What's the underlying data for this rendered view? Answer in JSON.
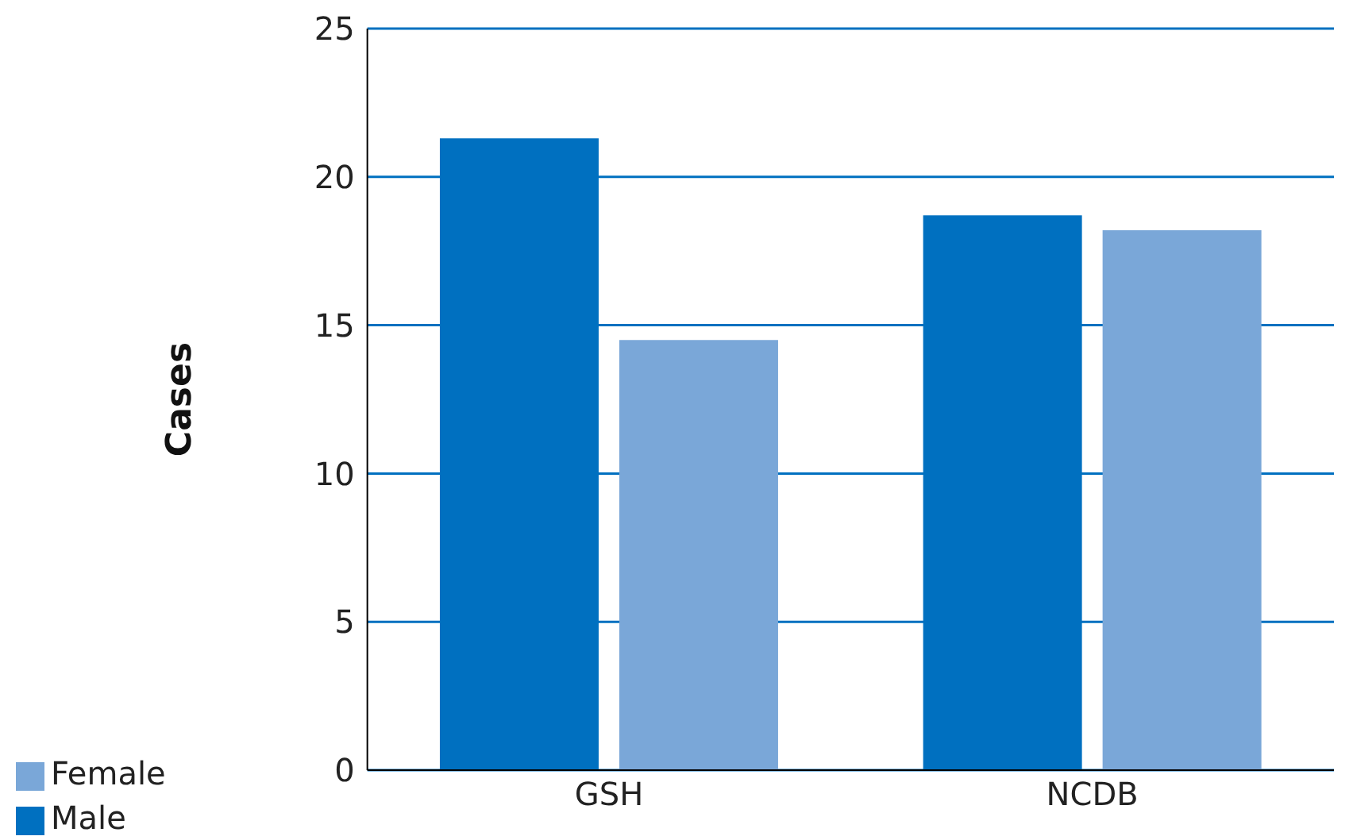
{
  "chart_data": {
    "type": "bar",
    "ylabel": "Cases",
    "categories": [
      "GSH",
      "NCDB"
    ],
    "series": [
      {
        "name": "Male",
        "color": "#0070c0",
        "values": [
          21.3,
          18.7
        ]
      },
      {
        "name": "Female",
        "color": "#7aa7d8",
        "values": [
          14.5,
          18.2
        ]
      }
    ],
    "ylim": [
      0,
      25
    ],
    "yticks": [
      0,
      5,
      10,
      15,
      20,
      25
    ],
    "grid": "y",
    "legend": "bottom left"
  }
}
